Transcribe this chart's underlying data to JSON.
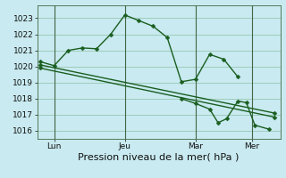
{
  "background_color": "#c8eaf0",
  "grid_color": "#a0ccbb",
  "line_color": "#1a5e20",
  "marker": "D",
  "marker_size": 2.5,
  "line_width": 1.0,
  "ylim": [
    1015.5,
    1023.8
  ],
  "yticks": [
    1016,
    1017,
    1018,
    1019,
    1020,
    1021,
    1022,
    1023
  ],
  "xlabel": "Pression niveau de la mer( hPa )",
  "xlabel_fontsize": 8,
  "tick_fontsize": 6.5,
  "xtick_labels": [
    "Lun",
    "Jeu",
    "Mar",
    "Mer"
  ],
  "xtick_positions": [
    0.5,
    3.0,
    5.5,
    7.5
  ],
  "xlim": [
    -0.1,
    8.5
  ],
  "series": [
    {
      "x": [
        0.0,
        0.5,
        1.0,
        1.5,
        2.0,
        2.5,
        3.0,
        3.5,
        4.0,
        4.5,
        5.0,
        5.5,
        6.0,
        6.5,
        7.0
      ],
      "y": [
        1020.3,
        1020.05,
        1021.0,
        1021.15,
        1021.1,
        1022.0,
        1023.2,
        1022.85,
        1022.5,
        1021.8,
        1019.05,
        1019.2,
        1020.75,
        1020.45,
        1019.35
      ]
    },
    {
      "x": [
        0.0,
        8.3
      ],
      "y": [
        1020.1,
        1017.1
      ]
    },
    {
      "x": [
        0.0,
        8.3
      ],
      "y": [
        1019.9,
        1016.85
      ]
    },
    {
      "x": [
        5.0,
        5.5,
        6.0,
        6.3,
        6.6,
        7.0,
        7.3,
        7.6,
        8.1
      ],
      "y": [
        1018.0,
        1017.7,
        1017.35,
        1016.5,
        1016.75,
        1017.85,
        1017.75,
        1016.35,
        1016.1
      ]
    }
  ]
}
